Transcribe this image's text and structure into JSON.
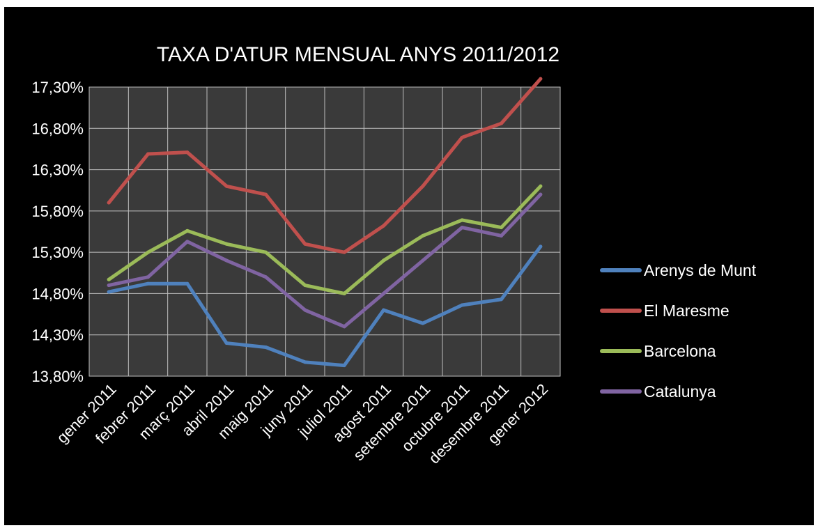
{
  "chart_data": {
    "type": "line",
    "title": "TAXA D'ATUR MENSUAL ANYS 2011/2012",
    "xlabel": "",
    "ylabel": "",
    "categories": [
      "gener 2011",
      "febrer 2011",
      "març 2011",
      "abril 2011",
      "maig 2011",
      "juny 2011",
      "juliol 2011",
      "agost 2011",
      "setembre 2011",
      "octubre 2011",
      "desembre 2011",
      "gener 2012"
    ],
    "y_ticks": [
      "13,80%",
      "14,30%",
      "14,80%",
      "15,30%",
      "15,80%",
      "16,30%",
      "16,80%",
      "17,30%"
    ],
    "ylim": [
      13.8,
      17.3
    ],
    "grid": true,
    "legend_position": "right",
    "plot_background": "#3a3a3a",
    "series": [
      {
        "name": "Arenys de Munt",
        "color": "#4f81bd",
        "values": [
          14.82,
          14.92,
          14.92,
          14.2,
          14.15,
          13.97,
          13.93,
          14.6,
          14.44,
          14.66,
          14.73,
          15.37
        ]
      },
      {
        "name": "El Maresme",
        "color": "#c0504d",
        "values": [
          15.9,
          16.49,
          16.51,
          16.1,
          16.0,
          15.4,
          15.3,
          15.62,
          16.1,
          16.69,
          16.86,
          17.4
        ]
      },
      {
        "name": "Barcelona",
        "color": "#9bbb59",
        "values": [
          14.97,
          15.3,
          15.56,
          15.4,
          15.3,
          14.9,
          14.8,
          15.2,
          15.5,
          15.69,
          15.6,
          16.1
        ]
      },
      {
        "name": "Catalunya",
        "color": "#8064a2",
        "values": [
          14.9,
          15.0,
          15.43,
          15.2,
          15.0,
          14.6,
          14.4,
          14.8,
          15.2,
          15.6,
          15.5,
          16.0
        ]
      }
    ]
  }
}
